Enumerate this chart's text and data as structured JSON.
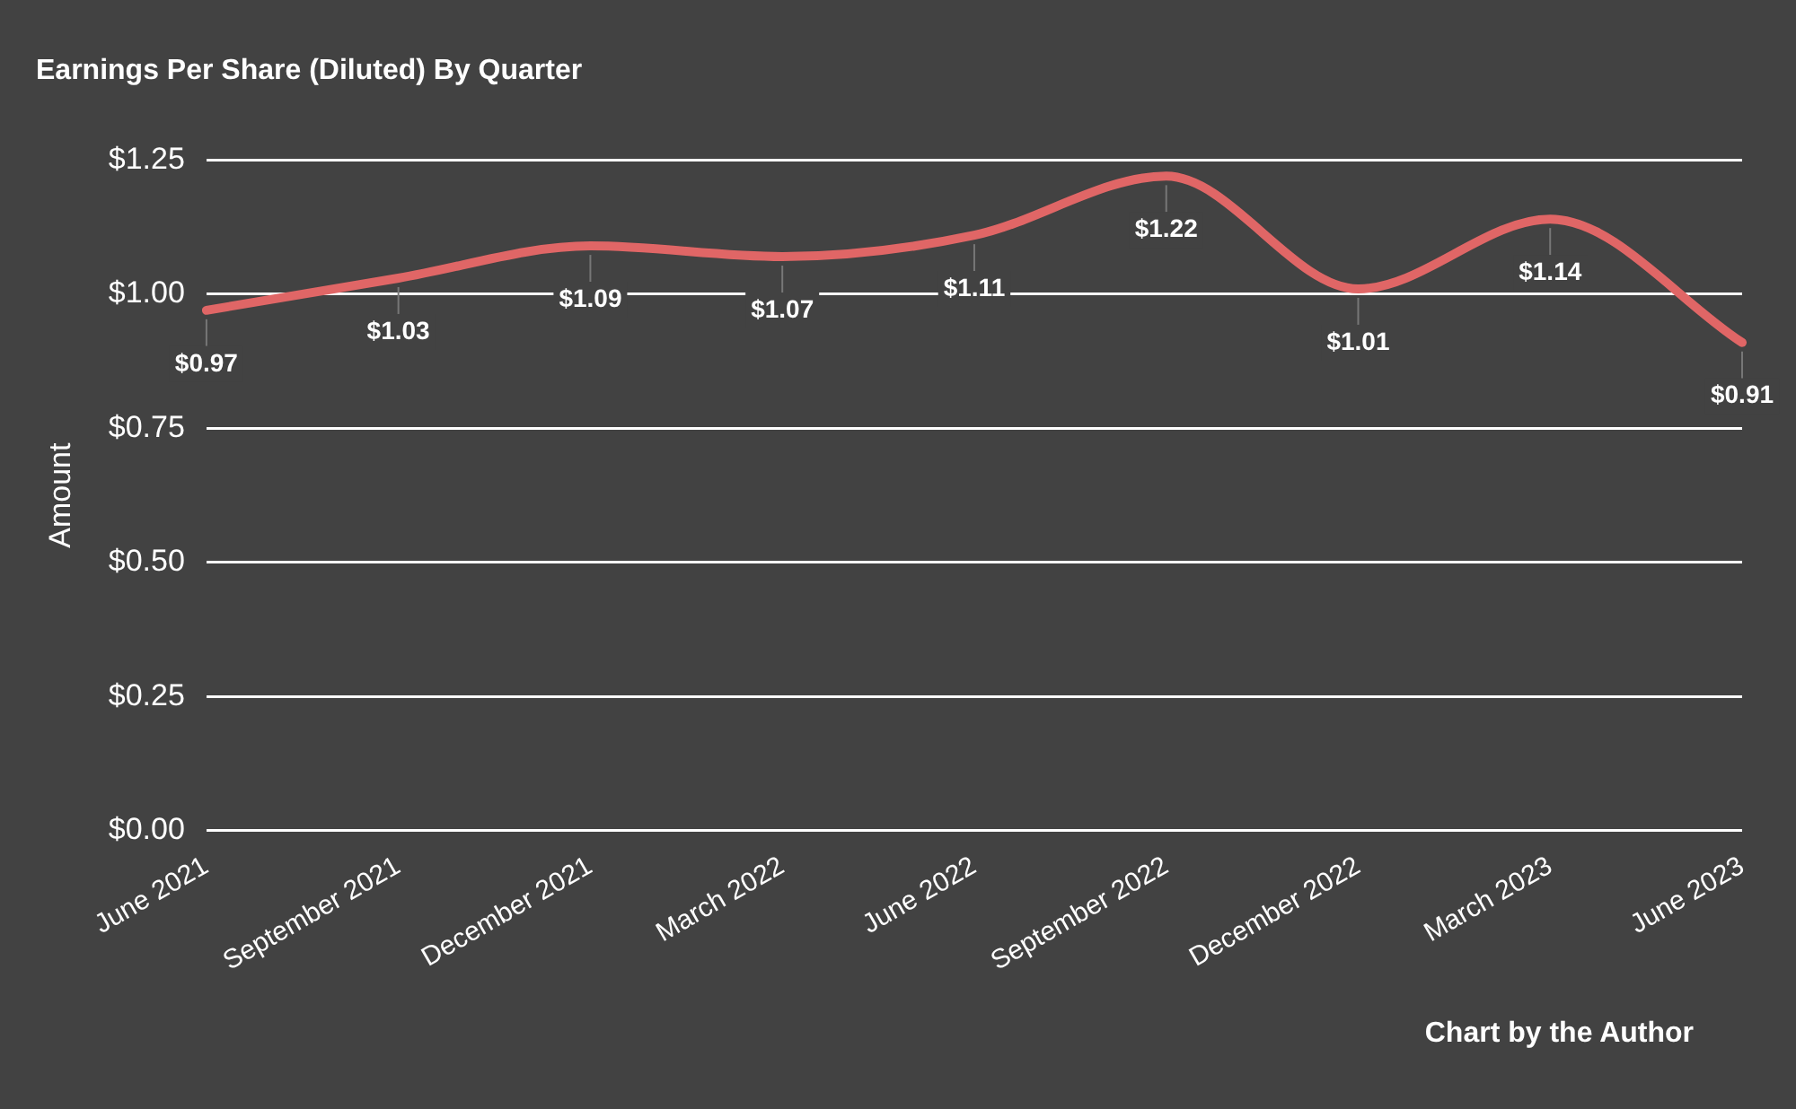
{
  "chart_data": {
    "type": "line",
    "title": "Earnings Per Share (Diluted) By Quarter",
    "ylabel": "Amount",
    "categories": [
      "June 2021",
      "September 2021",
      "December 2021",
      "March 2022",
      "June 2022",
      "September 2022",
      "December 2022",
      "March 2023",
      "June 2023"
    ],
    "series": [
      {
        "color": "#e06666",
        "values": [
          0.97,
          1.03,
          1.09,
          1.07,
          1.11,
          1.22,
          1.01,
          1.14,
          0.91
        ]
      }
    ],
    "value_labels": [
      "$0.97",
      "$1.03",
      "$1.09",
      "$1.07",
      "$1.11",
      "$1.22",
      "$1.01",
      "$1.14",
      "$0.91"
    ],
    "ylim": [
      0,
      1.25
    ],
    "yticks": [
      {
        "value": 0,
        "label": "$0.00"
      },
      {
        "value": 0.25,
        "label": "$0.25"
      },
      {
        "value": 0.5,
        "label": "$0.50"
      },
      {
        "value": 0.75,
        "label": "$0.75"
      },
      {
        "value": 1,
        "label": "$1.00"
      },
      {
        "value": 1.25,
        "label": "$1.25"
      }
    ],
    "grid": "y",
    "legend": false,
    "marker": "none",
    "line_style": "solid",
    "annotations": [
      "Chart by the Author"
    ]
  }
}
